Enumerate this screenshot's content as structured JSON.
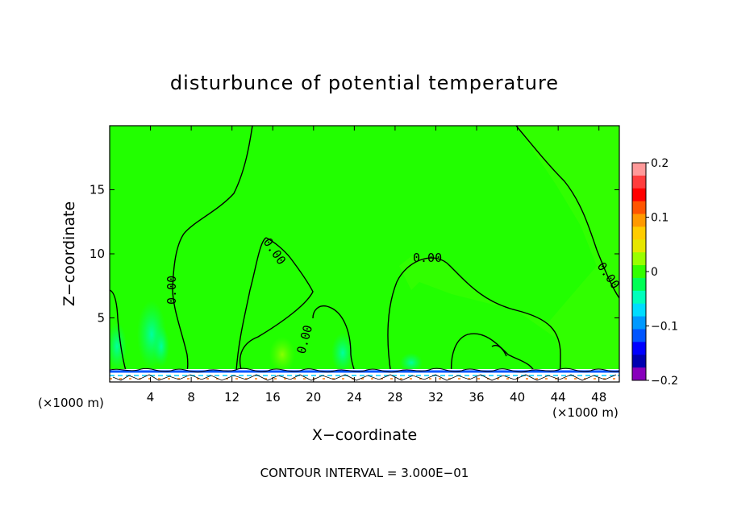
{
  "chart_data": {
    "type": "heatmap",
    "title": "disturbunce of potential temperature",
    "xlabel": "X−coordinate",
    "ylabel": "Z−coordinate",
    "x_unit_note": "(×1000 m)",
    "y_unit_note": "(×1000 m)",
    "xlim": [
      0,
      50
    ],
    "ylim": [
      0,
      20
    ],
    "x_ticks": [
      4,
      8,
      12,
      16,
      20,
      24,
      28,
      32,
      36,
      40,
      44,
      48
    ],
    "y_ticks": [
      5,
      10,
      15
    ],
    "colorbar": {
      "range": [
        -0.2,
        0.2
      ],
      "tick_values": [
        0.2,
        0.1,
        0,
        -0.1,
        -0.2
      ],
      "tick_labels": [
        "0.2",
        "0.1",
        "0",
        "−0.1",
        "−0.2"
      ],
      "colors": [
        "#ff9999",
        "#ff3d3d",
        "#ff0000",
        "#ff5500",
        "#ff9900",
        "#ffcc00",
        "#e6e600",
        "#99ff00",
        "#33ff00",
        "#00ff55",
        "#00ffbb",
        "#00ddff",
        "#0099ff",
        "#0055ff",
        "#0000ff",
        "#0000b0",
        "#8800bb"
      ]
    },
    "background_value": 0.0,
    "contour_labels": [
      "0.00",
      "0.00",
      "0.00",
      "0.00",
      "0.00"
    ],
    "footer": "CONTOUR INTERVAL = 3.000E−01"
  }
}
